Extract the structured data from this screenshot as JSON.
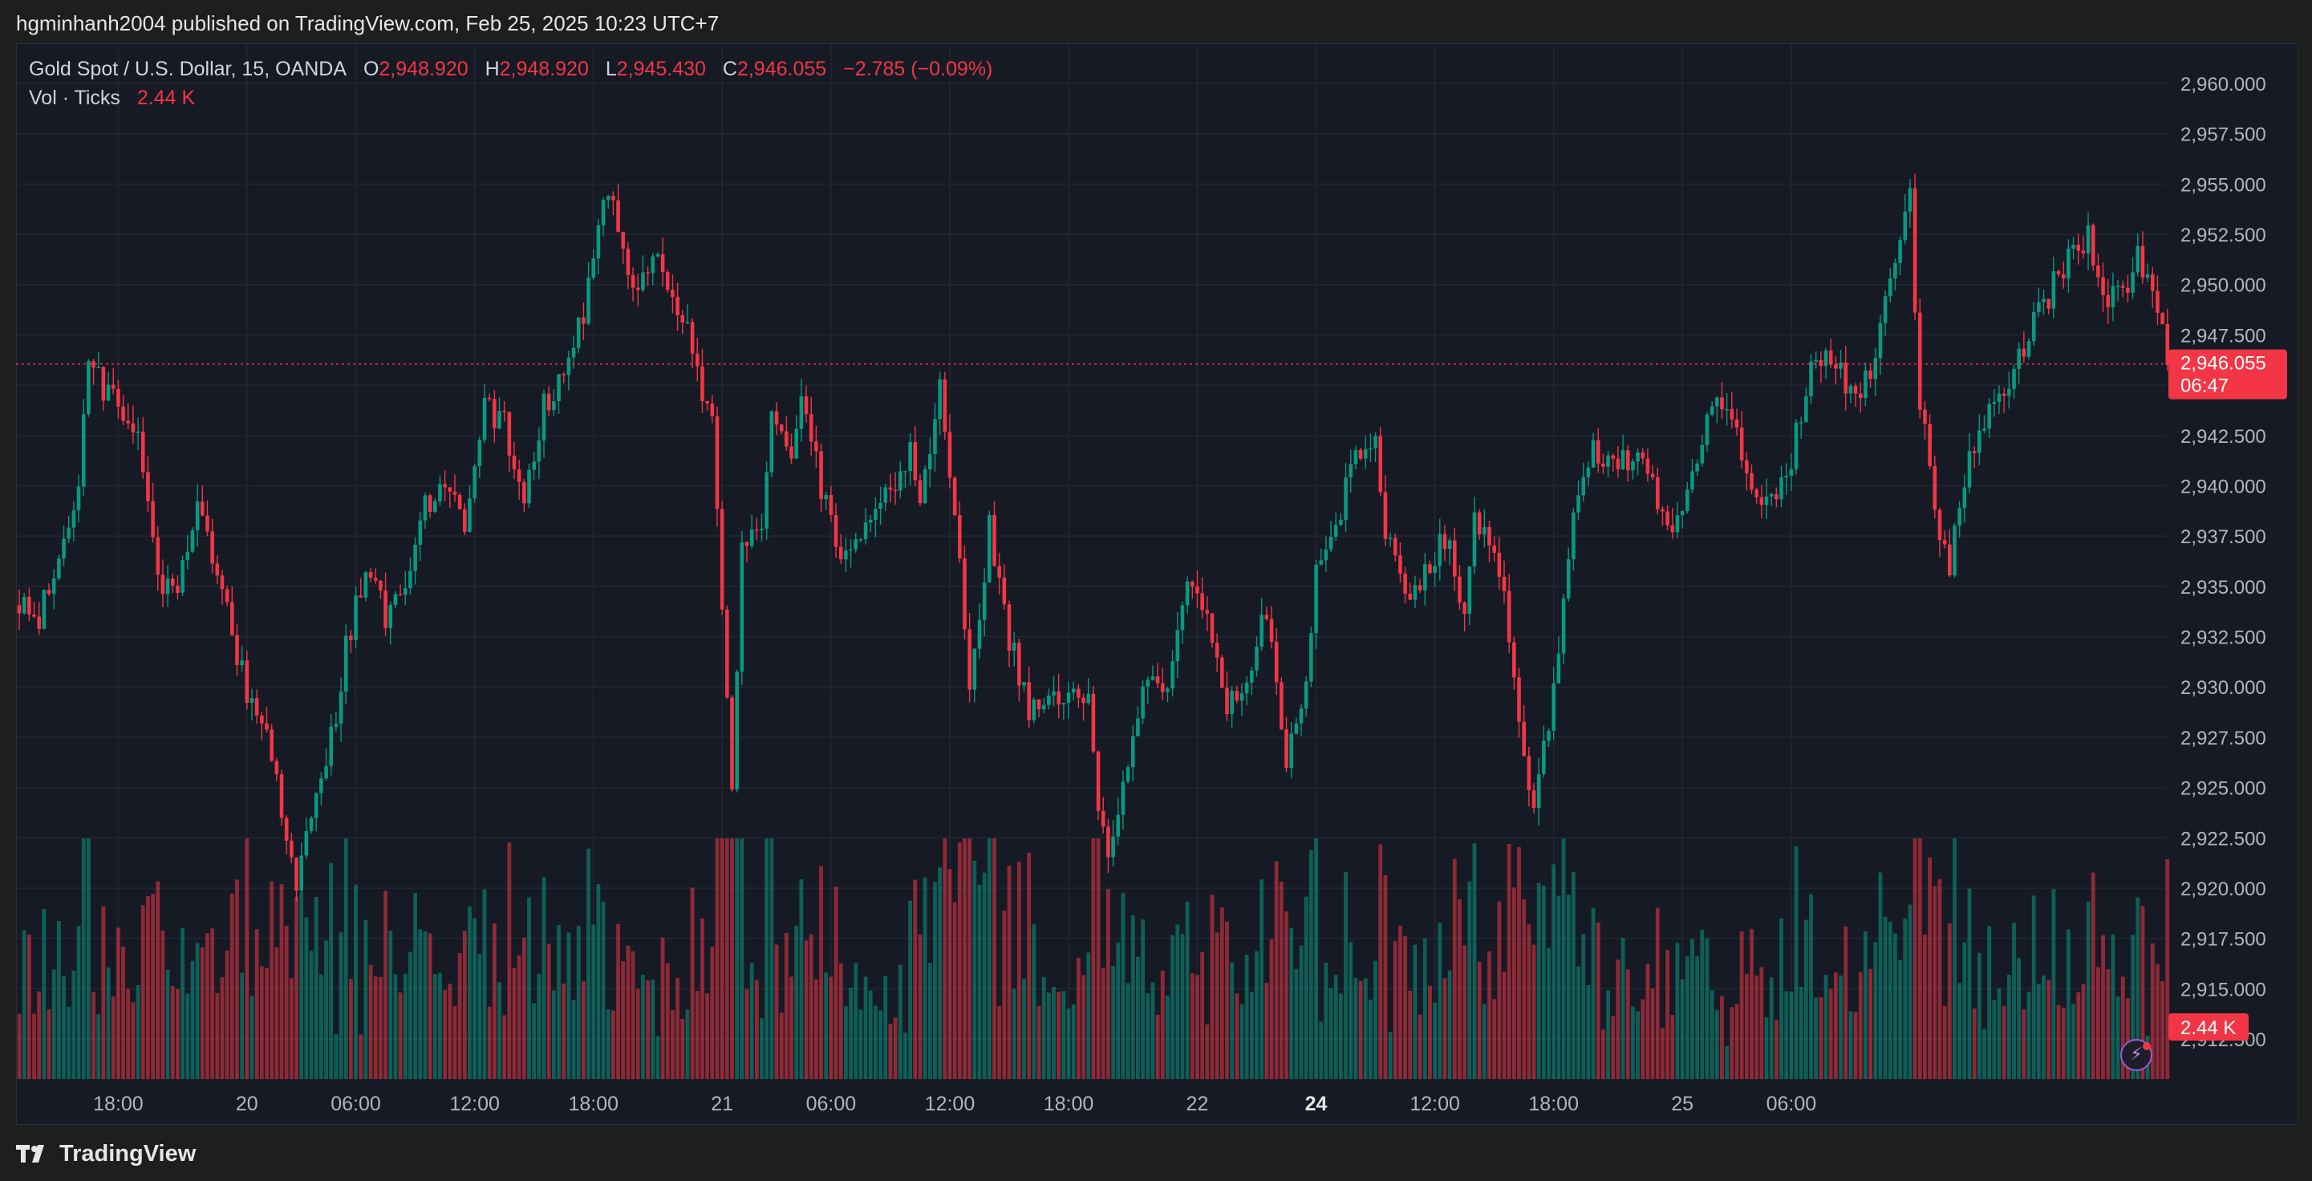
{
  "header": {
    "publisher": "hgminhanh2004 published on TradingView.com, Feb 25, 2025 10:23 UTC+7"
  },
  "legend": {
    "symbol": "Gold Spot / U.S. Dollar, 15, OANDA",
    "open_label": "O",
    "open": "2,948.920",
    "high_label": "H",
    "high": "2,948.920",
    "low_label": "L",
    "low": "2,945.430",
    "close_label": "C",
    "close": "2,946.055",
    "change": "−2.785 (−0.09%)",
    "volume_label": "Vol · Ticks",
    "volume": "2.44 K"
  },
  "footer": {
    "brand": "TradingView"
  },
  "icons": {
    "logo": "tradingview-logo-icon",
    "bolt": "lightning-bolt-icon"
  },
  "colors": {
    "up": "#089981",
    "down": "#f23645",
    "background": "#161a25",
    "grid": "#232734"
  },
  "chart_data": {
    "type": "candlestick",
    "timeframe_minutes": 15,
    "price_axis": {
      "range": [
        2911.5,
        2961.5
      ],
      "ticks": [
        "2,960.000",
        "2,957.500",
        "2,955.000",
        "2,952.500",
        "2,950.000",
        "2,947.500",
        "2,945.000",
        "2,942.500",
        "2,940.000",
        "2,937.500",
        "2,935.000",
        "2,932.500",
        "2,930.000",
        "2,927.500",
        "2,925.000",
        "2,922.500",
        "2,920.000",
        "2,917.500",
        "2,915.000",
        "2,912.500"
      ]
    },
    "time_axis": {
      "ticks": [
        {
          "label": "18:00",
          "index": 20
        },
        {
          "label": "20",
          "index": 46
        },
        {
          "label": "06:00",
          "index": 68
        },
        {
          "label": "12:00",
          "index": 92
        },
        {
          "label": "18:00",
          "index": 116
        },
        {
          "label": "21",
          "index": 142
        },
        {
          "label": "06:00",
          "index": 164
        },
        {
          "label": "12:00",
          "index": 188
        },
        {
          "label": "18:00",
          "index": 212
        },
        {
          "label": "22",
          "index": 238
        },
        {
          "label": "24",
          "index": 262
        },
        {
          "label": "12:00",
          "index": 286
        },
        {
          "label": "18:00",
          "index": 310
        },
        {
          "label": "25",
          "index": 336
        },
        {
          "label": "06:00",
          "index": 358
        }
      ],
      "bold_labels": [
        "24"
      ]
    },
    "last_price": {
      "value": 2946.055,
      "label": "2,946.055",
      "countdown": "06:47"
    },
    "last_volume_label": "2.44 K",
    "volume_max_ticks": 9000,
    "close_path": [
      [
        0,
        2934.0
      ],
      [
        4,
        2933.5
      ],
      [
        8,
        2936.5
      ],
      [
        12,
        2940.0
      ],
      [
        14,
        2946.0
      ],
      [
        18,
        2944.5
      ],
      [
        20,
        2944.0
      ],
      [
        24,
        2943.0
      ],
      [
        28,
        2935.5
      ],
      [
        32,
        2934.5
      ],
      [
        36,
        2939.0
      ],
      [
        38,
        2937.5
      ],
      [
        42,
        2934.0
      ],
      [
        46,
        2929.5
      ],
      [
        50,
        2928.0
      ],
      [
        54,
        2922.5
      ],
      [
        56,
        2920.5
      ],
      [
        60,
        2924.5
      ],
      [
        64,
        2928.5
      ],
      [
        66,
        2932.0
      ],
      [
        70,
        2936.0
      ],
      [
        74,
        2933.5
      ],
      [
        78,
        2935.0
      ],
      [
        82,
        2939.0
      ],
      [
        86,
        2940.5
      ],
      [
        90,
        2938.0
      ],
      [
        94,
        2944.0
      ],
      [
        98,
        2943.0
      ],
      [
        102,
        2939.5
      ],
      [
        106,
        2944.0
      ],
      [
        110,
        2945.5
      ],
      [
        114,
        2948.5
      ],
      [
        118,
        2954.0
      ],
      [
        120,
        2954.0
      ],
      [
        124,
        2950.0
      ],
      [
        128,
        2951.5
      ],
      [
        132,
        2949.0
      ],
      [
        136,
        2947.0
      ],
      [
        138,
        2944.0
      ],
      [
        140,
        2943.0
      ],
      [
        142,
        2934.0
      ],
      [
        144,
        2925.0
      ],
      [
        146,
        2936.5
      ],
      [
        150,
        2938.0
      ],
      [
        152,
        2944.0
      ],
      [
        156,
        2942.0
      ],
      [
        158,
        2944.5
      ],
      [
        162,
        2940.0
      ],
      [
        166,
        2936.5
      ],
      [
        168,
        2937.0
      ],
      [
        172,
        2939.0
      ],
      [
        176,
        2939.5
      ],
      [
        180,
        2941.5
      ],
      [
        182,
        2939.0
      ],
      [
        186,
        2945.0
      ],
      [
        190,
        2936.0
      ],
      [
        192,
        2929.5
      ],
      [
        196,
        2938.0
      ],
      [
        200,
        2932.5
      ],
      [
        204,
        2929.0
      ],
      [
        208,
        2929.0
      ],
      [
        212,
        2930.0
      ],
      [
        216,
        2929.0
      ],
      [
        218,
        2924.0
      ],
      [
        220,
        2921.0
      ],
      [
        224,
        2926.0
      ],
      [
        228,
        2931.0
      ],
      [
        232,
        2930.0
      ],
      [
        236,
        2935.0
      ],
      [
        240,
        2934.0
      ],
      [
        244,
        2929.0
      ],
      [
        248,
        2930.5
      ],
      [
        252,
        2934.0
      ],
      [
        256,
        2926.0
      ],
      [
        260,
        2930.0
      ],
      [
        262,
        2936.5
      ],
      [
        266,
        2938.0
      ],
      [
        270,
        2941.5
      ],
      [
        274,
        2942.0
      ],
      [
        276,
        2938.0
      ],
      [
        280,
        2934.0
      ],
      [
        284,
        2935.5
      ],
      [
        288,
        2937.5
      ],
      [
        292,
        2934.0
      ],
      [
        294,
        2939.0
      ],
      [
        296,
        2937.5
      ],
      [
        298,
        2936.0
      ],
      [
        300,
        2935.0
      ],
      [
        302,
        2930.0
      ],
      [
        306,
        2924.0
      ],
      [
        310,
        2930.0
      ],
      [
        314,
        2938.0
      ],
      [
        318,
        2942.0
      ],
      [
        322,
        2941.0
      ],
      [
        326,
        2941.5
      ],
      [
        330,
        2940.0
      ],
      [
        334,
        2937.5
      ],
      [
        338,
        2941.0
      ],
      [
        342,
        2944.0
      ],
      [
        346,
        2943.0
      ],
      [
        350,
        2940.0
      ],
      [
        354,
        2939.0
      ],
      [
        358,
        2941.5
      ],
      [
        362,
        2945.5
      ],
      [
        366,
        2946.5
      ],
      [
        370,
        2944.5
      ],
      [
        374,
        2945.5
      ],
      [
        378,
        2950.0
      ],
      [
        382,
        2954.5
      ],
      [
        384,
        2944.0
      ],
      [
        386,
        2941.0
      ],
      [
        388,
        2937.5
      ],
      [
        390,
        2936.0
      ],
      [
        394,
        2941.5
      ],
      [
        398,
        2943.5
      ],
      [
        402,
        2945.0
      ],
      [
        406,
        2947.5
      ],
      [
        410,
        2949.5
      ],
      [
        414,
        2951.5
      ],
      [
        418,
        2952.5
      ],
      [
        420,
        2950.0
      ],
      [
        422,
        2949.0
      ],
      [
        426,
        2950.0
      ],
      [
        428,
        2951.5
      ],
      [
        430,
        2950.0
      ],
      [
        432,
        2949.0
      ],
      [
        434,
        2946.0
      ]
    ]
  }
}
